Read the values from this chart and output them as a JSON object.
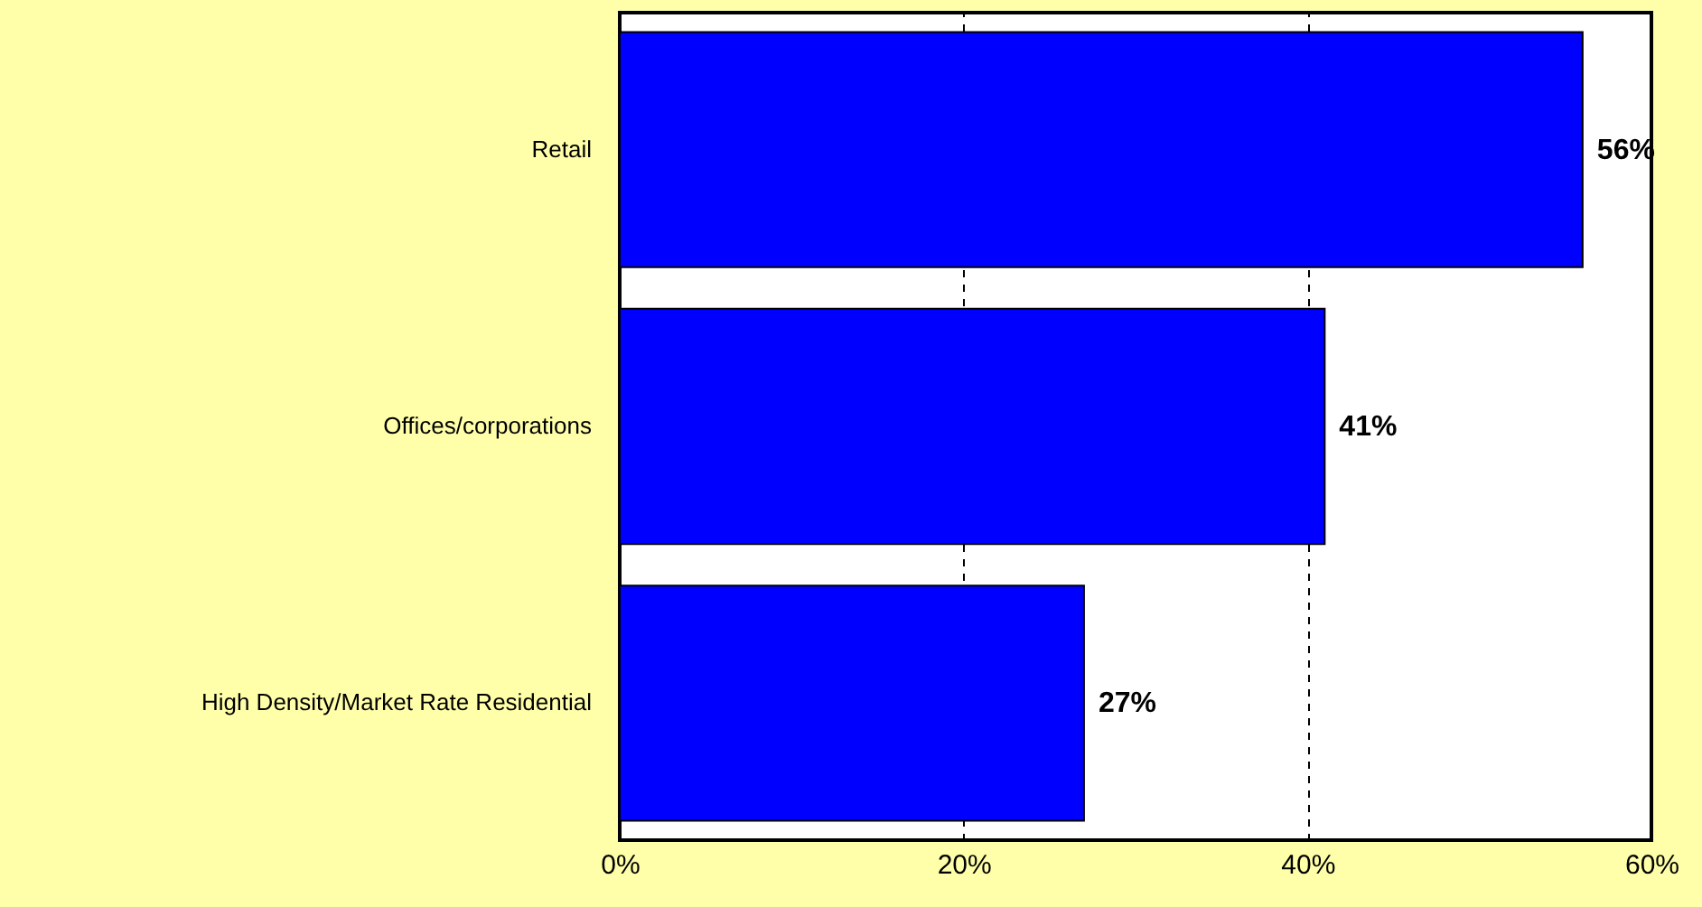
{
  "chart_data": {
    "type": "bar",
    "orientation": "horizontal",
    "categories": [
      "Retail",
      "Offices/corporations",
      "High Density/Market Rate Residential"
    ],
    "values": [
      56,
      41,
      27
    ],
    "color": "#0000ff",
    "value_labels": [
      "56%",
      "41%",
      "27%"
    ],
    "xlim": [
      0,
      60
    ],
    "xticks": [
      {
        "value": 0,
        "label": "0%"
      },
      {
        "value": 20,
        "label": "20%"
      },
      {
        "value": 40,
        "label": "40%"
      },
      {
        "value": 60,
        "label": "60%"
      }
    ],
    "grid": "x",
    "line_style": "dashed"
  }
}
